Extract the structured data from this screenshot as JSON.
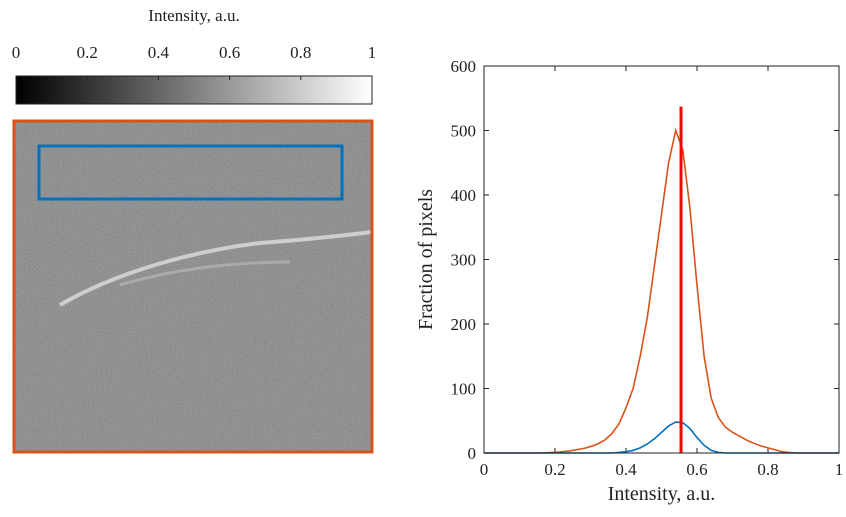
{
  "chart_data": [
    {
      "type": "colorbar",
      "title": "Intensity, a.u.",
      "lim": [
        0,
        1
      ],
      "ticks": [
        0,
        0.2,
        0.4,
        0.6,
        0.8,
        1
      ]
    },
    {
      "type": "line",
      "xlabel": "Intensity, a.u.",
      "ylabel": "Fraction of pixels",
      "xlim": [
        0,
        1
      ],
      "xticks": [
        0,
        0.2,
        0.4,
        0.6,
        0.8,
        1
      ],
      "ylim": [
        0,
        600
      ],
      "yticks": [
        0,
        100,
        200,
        300,
        400,
        500,
        600
      ],
      "x": [
        0,
        0.02,
        0.04,
        0.06,
        0.08,
        0.1,
        0.12,
        0.14,
        0.16,
        0.18,
        0.2,
        0.22,
        0.24,
        0.26,
        0.28,
        0.3,
        0.32,
        0.34,
        0.36,
        0.38,
        0.4,
        0.42,
        0.44,
        0.46,
        0.48,
        0.5,
        0.52,
        0.54,
        0.56,
        0.58,
        0.6,
        0.62,
        0.64,
        0.66,
        0.68,
        0.7,
        0.72,
        0.74,
        0.76,
        0.78,
        0.8,
        0.82,
        0.84,
        0.86,
        0.88,
        0.9,
        0.92,
        0.94,
        0.96,
        0.98,
        1
      ],
      "series": [
        {
          "color": "#d95319",
          "values": [
            0,
            0,
            0,
            0,
            0,
            0,
            0,
            0,
            0,
            0.5,
            1,
            2,
            3,
            5,
            7,
            10,
            14,
            20,
            30,
            45,
            70,
            100,
            150,
            210,
            290,
            370,
            450,
            500,
            470,
            380,
            260,
            150,
            85,
            55,
            40,
            32,
            26,
            20,
            15,
            11,
            8,
            5,
            2,
            1,
            0,
            0,
            0,
            0,
            0,
            0,
            0
          ]
        },
        {
          "color": "#0072bd",
          "values": [
            0,
            0,
            0,
            0,
            0,
            0,
            0,
            0,
            0,
            0,
            0,
            0,
            0,
            0,
            0,
            0,
            0,
            0,
            0,
            1,
            2,
            4,
            8,
            14,
            22,
            32,
            42,
            48,
            47,
            38,
            24,
            12,
            4,
            1,
            0,
            0,
            0,
            0,
            0,
            0,
            0,
            0,
            0,
            0,
            0,
            0,
            0,
            0,
            0,
            0,
            0
          ]
        }
      ],
      "vline": {
        "x": 0.555,
        "ymax": 537,
        "color": "#ff0000"
      }
    }
  ]
}
